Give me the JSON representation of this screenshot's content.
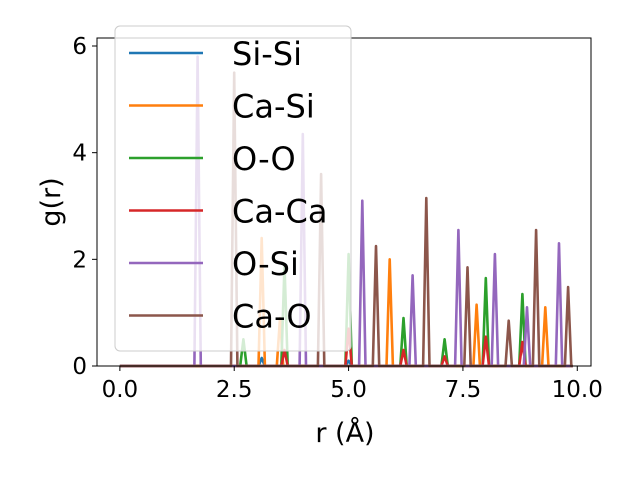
{
  "chart_data": {
    "type": "line",
    "title": "",
    "xlabel": "r (Å)",
    "ylabel": "g(r)",
    "xlim": [
      -0.5,
      10.3
    ],
    "ylim": [
      0,
      6.15
    ],
    "xticks": [
      0.0,
      2.5,
      5.0,
      7.5,
      10.0
    ],
    "xtick_labels": [
      "0.0",
      "2.5",
      "5.0",
      "7.5",
      "10.0"
    ],
    "yticks": [
      0,
      2,
      4,
      6
    ],
    "ytick_labels": [
      "0",
      "2",
      "4",
      "6"
    ],
    "grid": false,
    "legend_position": "upper left",
    "peak_halfwidth": 0.07,
    "series": [
      {
        "name": "Si-Si",
        "color": "#1f77b4",
        "peaks": [
          [
            3.1,
            0.15
          ],
          [
            5.0,
            0.1
          ]
        ]
      },
      {
        "name": "Ca-Si",
        "color": "#ff7f0e",
        "peaks": [
          [
            3.1,
            2.4
          ],
          [
            3.5,
            0.9
          ],
          [
            5.9,
            2.0
          ],
          [
            7.8,
            1.15
          ],
          [
            9.3,
            1.1
          ]
        ]
      },
      {
        "name": "O-O",
        "color": "#2ca02c",
        "peaks": [
          [
            2.7,
            0.5
          ],
          [
            3.6,
            1.9
          ],
          [
            5.0,
            2.1
          ],
          [
            6.2,
            0.9
          ],
          [
            7.1,
            0.5
          ],
          [
            8.0,
            1.65
          ],
          [
            8.8,
            1.35
          ]
        ]
      },
      {
        "name": "Ca-Ca",
        "color": "#d62728",
        "peaks": [
          [
            3.6,
            0.3
          ],
          [
            5.0,
            0.7
          ],
          [
            6.2,
            0.3
          ],
          [
            7.1,
            0.18
          ],
          [
            8.0,
            0.55
          ],
          [
            8.8,
            0.45
          ]
        ]
      },
      {
        "name": "O-Si",
        "color": "#9467bd",
        "peaks": [
          [
            1.7,
            5.8
          ],
          [
            4.0,
            4.35
          ],
          [
            5.3,
            3.1
          ],
          [
            6.4,
            1.7
          ],
          [
            7.4,
            2.55
          ],
          [
            8.2,
            2.1
          ],
          [
            8.9,
            1.1
          ],
          [
            9.6,
            2.3
          ]
        ]
      },
      {
        "name": "Ca-O",
        "color": "#8c564b",
        "peaks": [
          [
            2.5,
            5.5
          ],
          [
            4.4,
            3.6
          ],
          [
            5.6,
            2.25
          ],
          [
            6.7,
            3.15
          ],
          [
            7.6,
            1.85
          ],
          [
            8.5,
            0.85
          ],
          [
            9.1,
            2.55
          ],
          [
            9.8,
            1.48
          ]
        ]
      }
    ]
  }
}
